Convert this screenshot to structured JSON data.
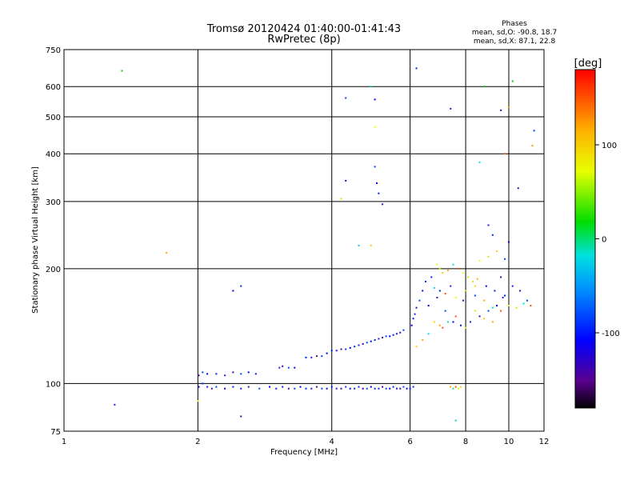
{
  "chart_data": {
    "type": "scatter",
    "title": "Tromsø 20120424 01:40:00-01:41:43",
    "subtitle": "RwPretec (8p)",
    "xlabel": "Frequency [MHz]",
    "ylabel": "Stationary phase Virtual Height [km]",
    "x_scale": "log",
    "y_scale": "log",
    "xlim": [
      1,
      12
    ],
    "ylim": [
      75,
      750
    ],
    "grid": true,
    "x_ticks": [
      1,
      2,
      4,
      6,
      8,
      10,
      12
    ],
    "x_tick_labels": [
      "1",
      "2",
      "4",
      "6",
      "8",
      "10",
      "12"
    ],
    "y_ticks": [
      75,
      100,
      200,
      300,
      400,
      500,
      600,
      750
    ],
    "y_tick_labels": [
      "75",
      "100",
      "200",
      "300",
      "400",
      "500",
      "600",
      "750"
    ],
    "legend": {
      "title": "Phases",
      "lines": [
        "mean, sd,O: -90.8, 18.7",
        "mean, sd,X:  87.1, 22.8"
      ],
      "placement": "top-right"
    },
    "colorbar": {
      "label": "[deg]",
      "range": [
        -180,
        180
      ],
      "ticks": [
        100,
        0,
        -100
      ],
      "tick_labels": [
        "100",
        "0",
        "-100"
      ],
      "placement": "right"
    },
    "series": [
      {
        "mode": "O",
        "points": [
          [
            2.01,
            98
          ],
          [
            2.05,
            100
          ],
          [
            2.1,
            98
          ],
          [
            2.15,
            97
          ],
          [
            2.2,
            98
          ],
          [
            2.3,
            97
          ],
          [
            2.4,
            98
          ],
          [
            2.5,
            97
          ],
          [
            2.6,
            98
          ],
          [
            2.75,
            97
          ],
          [
            2.9,
            98
          ],
          [
            3.0,
            97
          ],
          [
            3.1,
            98
          ],
          [
            3.2,
            97
          ],
          [
            3.3,
            97
          ],
          [
            3.4,
            98
          ],
          [
            3.5,
            97
          ],
          [
            3.6,
            97
          ],
          [
            3.7,
            98
          ],
          [
            3.8,
            97
          ],
          [
            3.9,
            97
          ],
          [
            4.0,
            98
          ],
          [
            4.1,
            97
          ],
          [
            4.2,
            97
          ],
          [
            4.3,
            98
          ],
          [
            4.4,
            97
          ],
          [
            4.5,
            97
          ],
          [
            4.6,
            98
          ],
          [
            4.7,
            97
          ],
          [
            4.8,
            97
          ],
          [
            4.9,
            98
          ],
          [
            5.0,
            97
          ],
          [
            5.1,
            97
          ],
          [
            5.2,
            98
          ],
          [
            5.3,
            97
          ],
          [
            5.4,
            97
          ],
          [
            5.5,
            98
          ],
          [
            5.6,
            97
          ],
          [
            5.7,
            97
          ],
          [
            5.8,
            98
          ],
          [
            5.9,
            97
          ],
          [
            6.0,
            97
          ],
          [
            6.1,
            98
          ],
          [
            2.01,
            105
          ],
          [
            2.05,
            107
          ],
          [
            2.1,
            106
          ],
          [
            2.2,
            106
          ],
          [
            2.3,
            105
          ],
          [
            2.4,
            107
          ],
          [
            2.5,
            106
          ],
          [
            2.6,
            107
          ],
          [
            2.7,
            106
          ],
          [
            3.05,
            110
          ],
          [
            3.1,
            111
          ],
          [
            3.2,
            110
          ],
          [
            3.3,
            110
          ],
          [
            3.5,
            117
          ],
          [
            3.6,
            117
          ],
          [
            3.7,
            118
          ],
          [
            3.8,
            118
          ],
          [
            3.9,
            120
          ],
          [
            4.0,
            122
          ],
          [
            4.1,
            122
          ],
          [
            4.2,
            123
          ],
          [
            4.3,
            123
          ],
          [
            4.4,
            124
          ],
          [
            4.5,
            125
          ],
          [
            4.6,
            126
          ],
          [
            4.7,
            127
          ],
          [
            4.8,
            128
          ],
          [
            4.9,
            129
          ],
          [
            5.0,
            130
          ],
          [
            5.1,
            131
          ],
          [
            5.2,
            132
          ],
          [
            5.3,
            133
          ],
          [
            5.4,
            133
          ],
          [
            5.5,
            134
          ],
          [
            5.6,
            135
          ],
          [
            5.7,
            136
          ],
          [
            5.8,
            138
          ],
          [
            6.05,
            142
          ],
          [
            6.1,
            148
          ],
          [
            6.15,
            152
          ],
          [
            6.2,
            158
          ],
          [
            6.3,
            165
          ],
          [
            6.4,
            175
          ],
          [
            6.5,
            185
          ],
          [
            6.7,
            190
          ],
          [
            6.9,
            168
          ],
          [
            7.2,
            155
          ],
          [
            7.5,
            145
          ],
          [
            7.8,
            142
          ],
          [
            8.2,
            145
          ],
          [
            8.6,
            150
          ],
          [
            9.0,
            155
          ],
          [
            9.4,
            160
          ],
          [
            9.8,
            170
          ],
          [
            10.2,
            180
          ],
          [
            10.6,
            175
          ],
          [
            11.0,
            165
          ],
          [
            6.6,
            160
          ],
          [
            7.0,
            175
          ],
          [
            7.4,
            180
          ],
          [
            7.9,
            165
          ],
          [
            8.4,
            170
          ],
          [
            8.9,
            180
          ],
          [
            9.3,
            175
          ],
          [
            9.7,
            168
          ],
          [
            9.6,
            190
          ],
          [
            9.8,
            212
          ],
          [
            10.0,
            235
          ],
          [
            9.2,
            245
          ],
          [
            9.0,
            260
          ],
          [
            10.5,
            325
          ],
          [
            5.0,
            370
          ],
          [
            5.05,
            335
          ],
          [
            5.1,
            315
          ],
          [
            5.2,
            295
          ],
          [
            4.3,
            340
          ],
          [
            4.3,
            560
          ],
          [
            5.0,
            555
          ],
          [
            6.2,
            670
          ],
          [
            7.4,
            525
          ],
          [
            9.6,
            520
          ],
          [
            11.4,
            460
          ],
          [
            2.4,
            175
          ],
          [
            2.5,
            180
          ],
          [
            1.3,
            88
          ],
          [
            2.5,
            82
          ]
        ]
      },
      {
        "mode": "X",
        "points": [
          [
            6.9,
            205
          ],
          [
            7.0,
            200
          ],
          [
            7.1,
            195
          ],
          [
            7.3,
            198
          ],
          [
            7.5,
            205
          ],
          [
            7.7,
            200
          ],
          [
            7.9,
            195
          ],
          [
            8.1,
            190
          ],
          [
            8.3,
            185
          ],
          [
            8.5,
            188
          ],
          [
            6.8,
            178
          ],
          [
            7.2,
            172
          ],
          [
            7.6,
            168
          ],
          [
            8.0,
            175
          ],
          [
            8.4,
            180
          ],
          [
            8.8,
            165
          ],
          [
            9.2,
            158
          ],
          [
            9.6,
            155
          ],
          [
            10.0,
            160
          ],
          [
            10.4,
            158
          ],
          [
            6.8,
            145
          ],
          [
            7.0,
            142
          ],
          [
            7.3,
            145
          ],
          [
            7.6,
            150
          ],
          [
            8.0,
            140
          ],
          [
            8.4,
            155
          ],
          [
            8.8,
            148
          ],
          [
            9.2,
            145
          ],
          [
            10.8,
            162
          ],
          [
            11.2,
            160
          ],
          [
            8.6,
            210
          ],
          [
            9.0,
            215
          ],
          [
            9.4,
            222
          ],
          [
            7.4,
            98
          ],
          [
            7.5,
            97
          ],
          [
            7.6,
            98
          ],
          [
            7.7,
            97
          ],
          [
            7.8,
            98
          ],
          [
            6.2,
            125
          ],
          [
            6.4,
            130
          ],
          [
            6.6,
            135
          ],
          [
            7.1,
            140
          ],
          [
            5.0,
            470
          ],
          [
            4.2,
            305
          ],
          [
            4.9,
            230
          ],
          [
            1.7,
            220
          ],
          [
            8.6,
            380
          ],
          [
            9.8,
            400
          ],
          [
            2.0,
            90
          ]
        ]
      },
      {
        "mode": "other",
        "points": [
          [
            1.35,
            660
          ],
          [
            4.6,
            230
          ],
          [
            10.0,
            530
          ],
          [
            8.8,
            600
          ],
          [
            7.6,
            80
          ],
          [
            11.3,
            420
          ],
          [
            10.2,
            620
          ],
          [
            4.9,
            600
          ]
        ]
      }
    ]
  }
}
